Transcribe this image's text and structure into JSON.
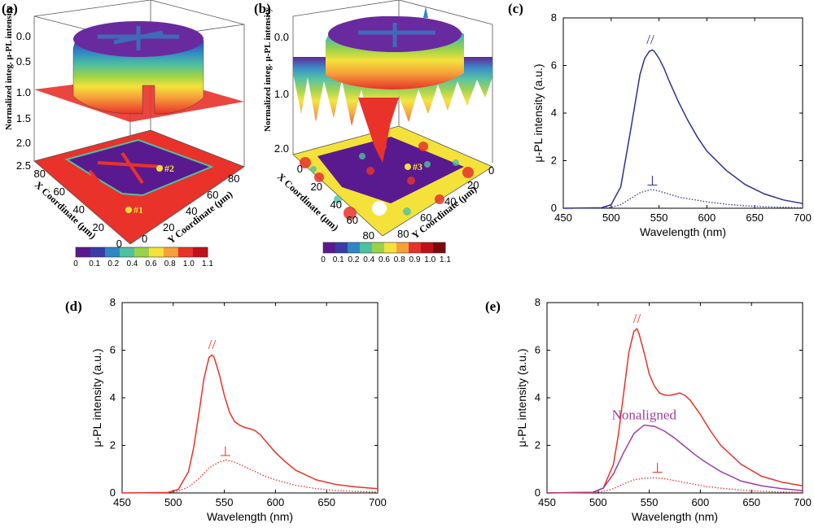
{
  "panel_labels": [
    "(a)",
    "(b)",
    "(c)",
    "(d)",
    "(e)"
  ],
  "map_a": {
    "z_axis_title": "Normalized integ. μ-PL intensity",
    "z_ticks": [
      "0.0",
      "0.5",
      "1.0",
      "1.5",
      "2.0",
      "2.5"
    ],
    "x_axis_title": "X Coordinate (μm)",
    "y_axis_title": "Y Coordinate (μm)",
    "x_ticks": [
      "80",
      "60",
      "40",
      "20",
      "0"
    ],
    "y_ticks": [
      "0",
      "20",
      "40",
      "60",
      "80"
    ],
    "points": [
      "#1",
      "#2"
    ],
    "colorbar_labels": [
      "0",
      "0.1",
      "0.2",
      "0.4",
      "0.6",
      "0.8",
      "1.0",
      "1.1"
    ],
    "colorbar_colors": [
      "#5a1a8f",
      "#3a3aa8",
      "#2f86c4",
      "#4fc0a0",
      "#9ad14a",
      "#f4e23a",
      "#f6a03a",
      "#e8322a",
      "#c0101a"
    ]
  },
  "map_b": {
    "z_axis_title": "Normalized integ. μ-PL intensity",
    "z_ticks": [
      "0.0",
      "1.0",
      "2.0"
    ],
    "x_axis_title": "X Coordinate (μm)",
    "y_axis_title": "Y Coordinate (μm)",
    "x_ticks": [
      "0",
      "20",
      "40",
      "60",
      "80"
    ],
    "y_ticks": [
      "80",
      "60",
      "40",
      "20",
      "0"
    ],
    "points": [
      "#3"
    ],
    "colorbar_labels": [
      "0",
      "0.1",
      "0.2",
      "0.4",
      "0.6",
      "0.8",
      "0.9",
      "1.0",
      "1.1"
    ],
    "colorbar_colors": [
      "#5a1a8f",
      "#3a3aa8",
      "#2f86c4",
      "#4fc0a0",
      "#9ad14a",
      "#f4e23a",
      "#f6a03a",
      "#e8322a",
      "#c0101a",
      "#7a0a0a"
    ]
  },
  "chart_data": [
    {
      "panel": "(c)",
      "type": "line",
      "xlabel": "Wavelength (nm)",
      "ylabel": "μ-PL intensity (a.u.)",
      "xlim": [
        450,
        700
      ],
      "ylim": [
        0,
        8
      ],
      "xticks": [
        450,
        500,
        550,
        600,
        650,
        700
      ],
      "yticks": [
        0,
        2,
        4,
        6,
        8
      ],
      "series": [
        {
          "name": "//",
          "color": "#2e3192",
          "style": "solid",
          "x": [
            450,
            490,
            500,
            510,
            520,
            530,
            535,
            540,
            543,
            545,
            550,
            555,
            560,
            570,
            580,
            590,
            600,
            620,
            640,
            660,
            680,
            700
          ],
          "y": [
            0,
            0.02,
            0.15,
            0.9,
            3.2,
            5.6,
            6.3,
            6.6,
            6.65,
            6.6,
            6.3,
            5.9,
            5.4,
            4.5,
            3.7,
            3.0,
            2.4,
            1.6,
            1.0,
            0.6,
            0.35,
            0.2
          ]
        },
        {
          "name": "⊥",
          "color": "#2e3192",
          "style": "dotted",
          "x": [
            450,
            490,
            500,
            510,
            520,
            530,
            540,
            543,
            545,
            550,
            560,
            570,
            580,
            600,
            620,
            640,
            660,
            680,
            700
          ],
          "y": [
            0,
            0.01,
            0.04,
            0.15,
            0.4,
            0.65,
            0.77,
            0.78,
            0.77,
            0.72,
            0.6,
            0.48,
            0.4,
            0.27,
            0.17,
            0.1,
            0.06,
            0.04,
            0.02
          ]
        }
      ]
    },
    {
      "panel": "(d)",
      "type": "line",
      "xlabel": "Wavelength (nm)",
      "ylabel": "μ-PL intensity (a.u.)",
      "xlim": [
        450,
        700
      ],
      "ylim": [
        0,
        8
      ],
      "xticks": [
        450,
        500,
        550,
        600,
        650,
        700
      ],
      "yticks": [
        0,
        2,
        4,
        6,
        8
      ],
      "series": [
        {
          "name": "//",
          "color": "#e8322a",
          "style": "solid",
          "x": [
            450,
            495,
            505,
            515,
            520,
            525,
            530,
            535,
            538,
            540,
            545,
            550,
            555,
            560,
            565,
            570,
            575,
            580,
            585,
            590,
            600,
            610,
            620,
            640,
            660,
            680,
            700
          ],
          "y": [
            0,
            0.02,
            0.15,
            0.9,
            1.9,
            3.3,
            4.8,
            5.7,
            5.8,
            5.7,
            5.0,
            4.1,
            3.4,
            3.0,
            2.85,
            2.75,
            2.7,
            2.62,
            2.45,
            2.2,
            1.7,
            1.3,
            0.95,
            0.55,
            0.35,
            0.25,
            0.18
          ]
        },
        {
          "name": "⊥",
          "color": "#e8322a",
          "style": "dotted",
          "x": [
            450,
            495,
            505,
            515,
            525,
            535,
            545,
            552,
            560,
            570,
            580,
            590,
            600,
            620,
            640,
            660,
            680,
            700
          ],
          "y": [
            0,
            0.02,
            0.08,
            0.25,
            0.6,
            1.05,
            1.3,
            1.38,
            1.3,
            1.1,
            0.9,
            0.7,
            0.55,
            0.32,
            0.18,
            0.1,
            0.06,
            0.04
          ]
        }
      ]
    },
    {
      "panel": "(e)",
      "type": "line",
      "xlabel": "Wavelength (nm)",
      "ylabel": "μ-PL intensity (a.u.)",
      "xlim": [
        450,
        700
      ],
      "ylim": [
        0,
        8
      ],
      "xticks": [
        450,
        500,
        550,
        600,
        650,
        700
      ],
      "yticks": [
        0,
        2,
        4,
        6,
        8
      ],
      "series": [
        {
          "name": "//",
          "color": "#e8322a",
          "style": "solid",
          "x": [
            450,
            495,
            505,
            515,
            520,
            525,
            530,
            535,
            538,
            540,
            545,
            550,
            555,
            560,
            565,
            570,
            575,
            580,
            585,
            590,
            600,
            610,
            620,
            640,
            660,
            680,
            700
          ],
          "y": [
            0,
            0.03,
            0.2,
            1.2,
            2.5,
            4.2,
            5.9,
            6.8,
            6.9,
            6.7,
            5.9,
            5.0,
            4.5,
            4.2,
            4.12,
            4.1,
            4.15,
            4.2,
            4.1,
            3.9,
            3.3,
            2.6,
            2.0,
            1.2,
            0.7,
            0.45,
            0.3
          ]
        },
        {
          "name": "Nonaligned",
          "color": "#9b3fa0",
          "style": "solid",
          "x": [
            450,
            495,
            505,
            515,
            525,
            535,
            545,
            555,
            565,
            575,
            585,
            595,
            605,
            620,
            640,
            660,
            680,
            700
          ],
          "y": [
            0,
            0.03,
            0.2,
            0.8,
            1.7,
            2.5,
            2.85,
            2.8,
            2.6,
            2.3,
            1.95,
            1.6,
            1.3,
            0.9,
            0.5,
            0.3,
            0.18,
            0.1
          ]
        },
        {
          "name": "⊥",
          "color": "#e8322a",
          "style": "dotted",
          "x": [
            450,
            495,
            505,
            515,
            525,
            535,
            545,
            555,
            565,
            575,
            585,
            595,
            605,
            620,
            640,
            660,
            680,
            700
          ],
          "y": [
            0,
            0.02,
            0.06,
            0.18,
            0.38,
            0.55,
            0.62,
            0.64,
            0.6,
            0.52,
            0.44,
            0.36,
            0.28,
            0.2,
            0.12,
            0.07,
            0.04,
            0.02
          ]
        }
      ]
    }
  ],
  "annotations": {
    "c": {
      "parallel": "//",
      "perp": "⊥"
    },
    "d": {
      "parallel": "//",
      "perp": "⊥"
    },
    "e": {
      "parallel": "//",
      "perp": "⊥",
      "nonaligned": "Nonaligned"
    }
  }
}
